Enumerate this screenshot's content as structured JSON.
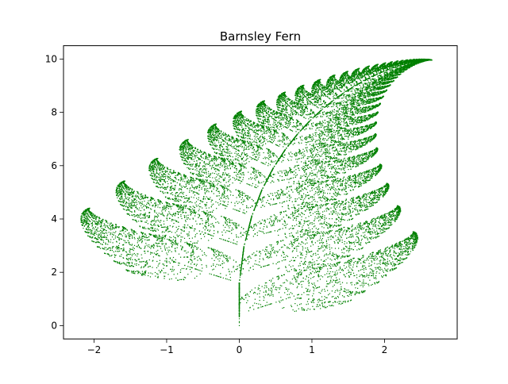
{
  "chart_data": {
    "type": "scatter",
    "title": "Barnsley Fern",
    "xlabel": "",
    "ylabel": "",
    "xlim": [
      -2.42,
      3.0
    ],
    "ylim": [
      -0.5,
      10.5
    ],
    "xticks": [
      -2,
      -1,
      0,
      1,
      2
    ],
    "yticks": [
      0,
      2,
      4,
      6,
      8,
      10
    ],
    "xtick_labels": [
      "−2",
      "−1",
      "0",
      "1",
      "2"
    ],
    "ytick_labels": [
      "0",
      "2",
      "4",
      "6",
      "8",
      "10"
    ],
    "grid": false,
    "marker_color": "#008000",
    "series": [
      {
        "generator": "Barnsley fern iterated function system",
        "points": 20000,
        "start": [
          0,
          0
        ],
        "transforms": [
          {
            "a": 0.0,
            "b": 0.0,
            "c": 0.0,
            "d": 0.16,
            "e": 0.0,
            "f": 0.0,
            "p": 0.01
          },
          {
            "a": 0.85,
            "b": 0.04,
            "c": -0.04,
            "d": 0.85,
            "e": 0.0,
            "f": 1.6,
            "p": 0.85
          },
          {
            "a": 0.2,
            "b": -0.26,
            "c": 0.23,
            "d": 0.22,
            "e": 0.0,
            "f": 1.6,
            "p": 0.07
          },
          {
            "a": -0.15,
            "b": 0.28,
            "c": 0.26,
            "d": 0.24,
            "e": 0.0,
            "f": 0.44,
            "p": 0.07
          }
        ]
      }
    ]
  }
}
